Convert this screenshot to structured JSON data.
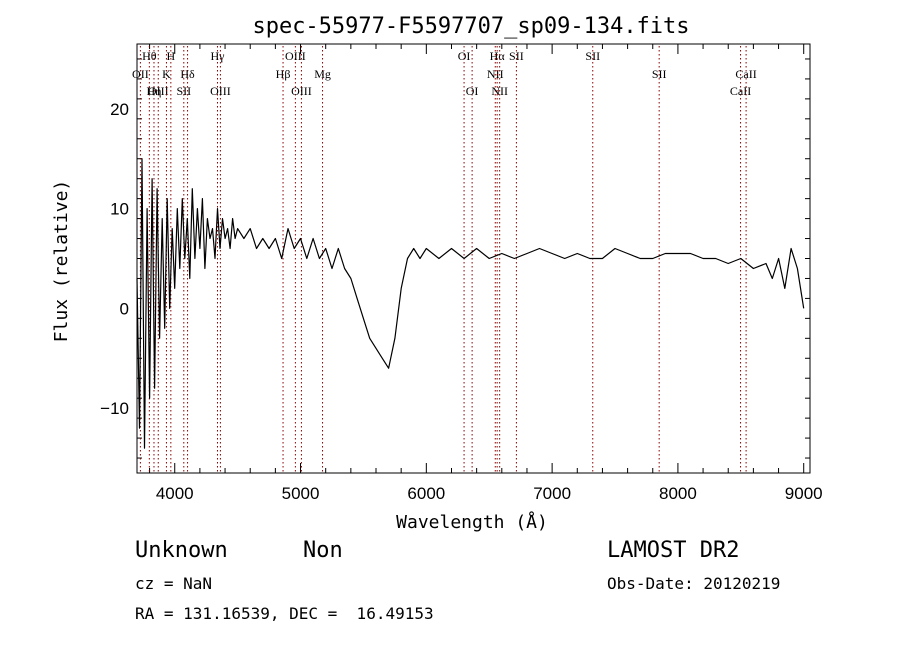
{
  "chart_data": {
    "type": "line",
    "title": "spec-55977-F5597707_sp09-134.fits",
    "xlabel": "Wavelength (Å)",
    "ylabel": "Flux (relative)",
    "xlim": [
      3700,
      9050
    ],
    "ylim": [
      -16.5,
      26.5
    ],
    "xticks": [
      4000,
      5000,
      6000,
      7000,
      8000,
      9000
    ],
    "yticks": [
      -10,
      0,
      10,
      20
    ],
    "grid": false,
    "line_color": "#000000",
    "marker_color": "#8b0000",
    "series": [
      {
        "x": [
          3700,
          3720,
          3740,
          3760,
          3780,
          3800,
          3820,
          3840,
          3860,
          3880,
          3900,
          3920,
          3940,
          3960,
          3980,
          4000,
          4020,
          4040,
          4060,
          4080,
          4100,
          4120,
          4140,
          4160,
          4180,
          4200,
          4220,
          4240,
          4260,
          4280,
          4300,
          4320,
          4340,
          4360,
          4380,
          4400,
          4420,
          4440,
          4460,
          4480,
          4500,
          4550,
          4600,
          4650,
          4700,
          4750,
          4800,
          4850,
          4900,
          4950,
          5000,
          5050,
          5100,
          5150,
          5200,
          5250,
          5300,
          5350,
          5400,
          5450,
          5500,
          5550,
          5600,
          5650,
          5700,
          5750,
          5800,
          5850,
          5900,
          5950,
          6000,
          6100,
          6200,
          6300,
          6400,
          6500,
          6600,
          6700,
          6800,
          6900,
          7000,
          7100,
          7200,
          7300,
          7400,
          7500,
          7600,
          7700,
          7800,
          7900,
          8000,
          8100,
          8200,
          8300,
          8400,
          8500,
          8600,
          8700,
          8750,
          8800,
          8850,
          8900,
          8950,
          9000
        ],
        "y": [
          3,
          -12,
          15,
          -14,
          10,
          -9,
          13,
          -8,
          12,
          -3,
          9,
          -2,
          11,
          0,
          8,
          2,
          10,
          4,
          11,
          5,
          9,
          3,
          12,
          5,
          10,
          6,
          11,
          4,
          9,
          7,
          8,
          5,
          10,
          6,
          9,
          7,
          8,
          6,
          9,
          7,
          8,
          7,
          8,
          6,
          7,
          6,
          7,
          5,
          8,
          6,
          7,
          5,
          7,
          5,
          6,
          4,
          6,
          4,
          3,
          1,
          -1,
          -3,
          -4,
          -5,
          -6,
          -3,
          2,
          5,
          6,
          5,
          6,
          5,
          6,
          5,
          6,
          5,
          5.5,
          5,
          5.5,
          6,
          5.5,
          5,
          5.5,
          5,
          5,
          6,
          5.5,
          5,
          5,
          5.5,
          5.5,
          5.5,
          5,
          5,
          4.5,
          5,
          4,
          4.5,
          3,
          5,
          2,
          6,
          4,
          0
        ]
      }
    ],
    "lines": [
      {
        "name": "OII",
        "x": 3727,
        "row": 2
      },
      {
        "name": "Hθ",
        "x": 3798,
        "row": 1
      },
      {
        "name": "Hη",
        "x": 3835,
        "row": 3
      },
      {
        "name": "OIII",
        "x": 3869,
        "row": 3
      },
      {
        "name": "K",
        "x": 3934,
        "row": 2
      },
      {
        "name": "H",
        "x": 3969,
        "row": 1
      },
      {
        "name": "SII",
        "x": 4072,
        "row": 3
      },
      {
        "name": "Hδ",
        "x": 4102,
        "row": 2
      },
      {
        "name": "Hγ",
        "x": 4340,
        "row": 1
      },
      {
        "name": "OIII",
        "x": 4363,
        "row": 3
      },
      {
        "name": "Hβ",
        "x": 4861,
        "row": 2
      },
      {
        "name": "OIII",
        "x": 4959,
        "row": 1
      },
      {
        "name": "OIII",
        "x": 5007,
        "row": 3
      },
      {
        "name": "Mg",
        "x": 5175,
        "row": 2
      },
      {
        "name": "OI",
        "x": 6300,
        "row": 1
      },
      {
        "name": "OI",
        "x": 6364,
        "row": 3
      },
      {
        "name": "NII",
        "x": 6548,
        "row": 2
      },
      {
        "name": "Hα",
        "x": 6563,
        "row": 1
      },
      {
        "name": "NII",
        "x": 6583,
        "row": 3
      },
      {
        "name": "SII",
        "x": 6716,
        "row": 1
      },
      {
        "name": "SII",
        "x": 7323,
        "row": 0
      },
      {
        "name": "SII",
        "x": 7851,
        "row": 2
      },
      {
        "name": "CaII",
        "x": 8498,
        "row": 3
      },
      {
        "name": "CaII",
        "x": 8542,
        "row": 2
      }
    ]
  },
  "info": {
    "class": "Unknown",
    "subclass": "Non",
    "survey": "LAMOST DR2",
    "redshift": "cz = NaN",
    "obs_date": "Obs-Date: 20120219",
    "coords": "RA = 131.16539, DEC =  16.49153"
  }
}
